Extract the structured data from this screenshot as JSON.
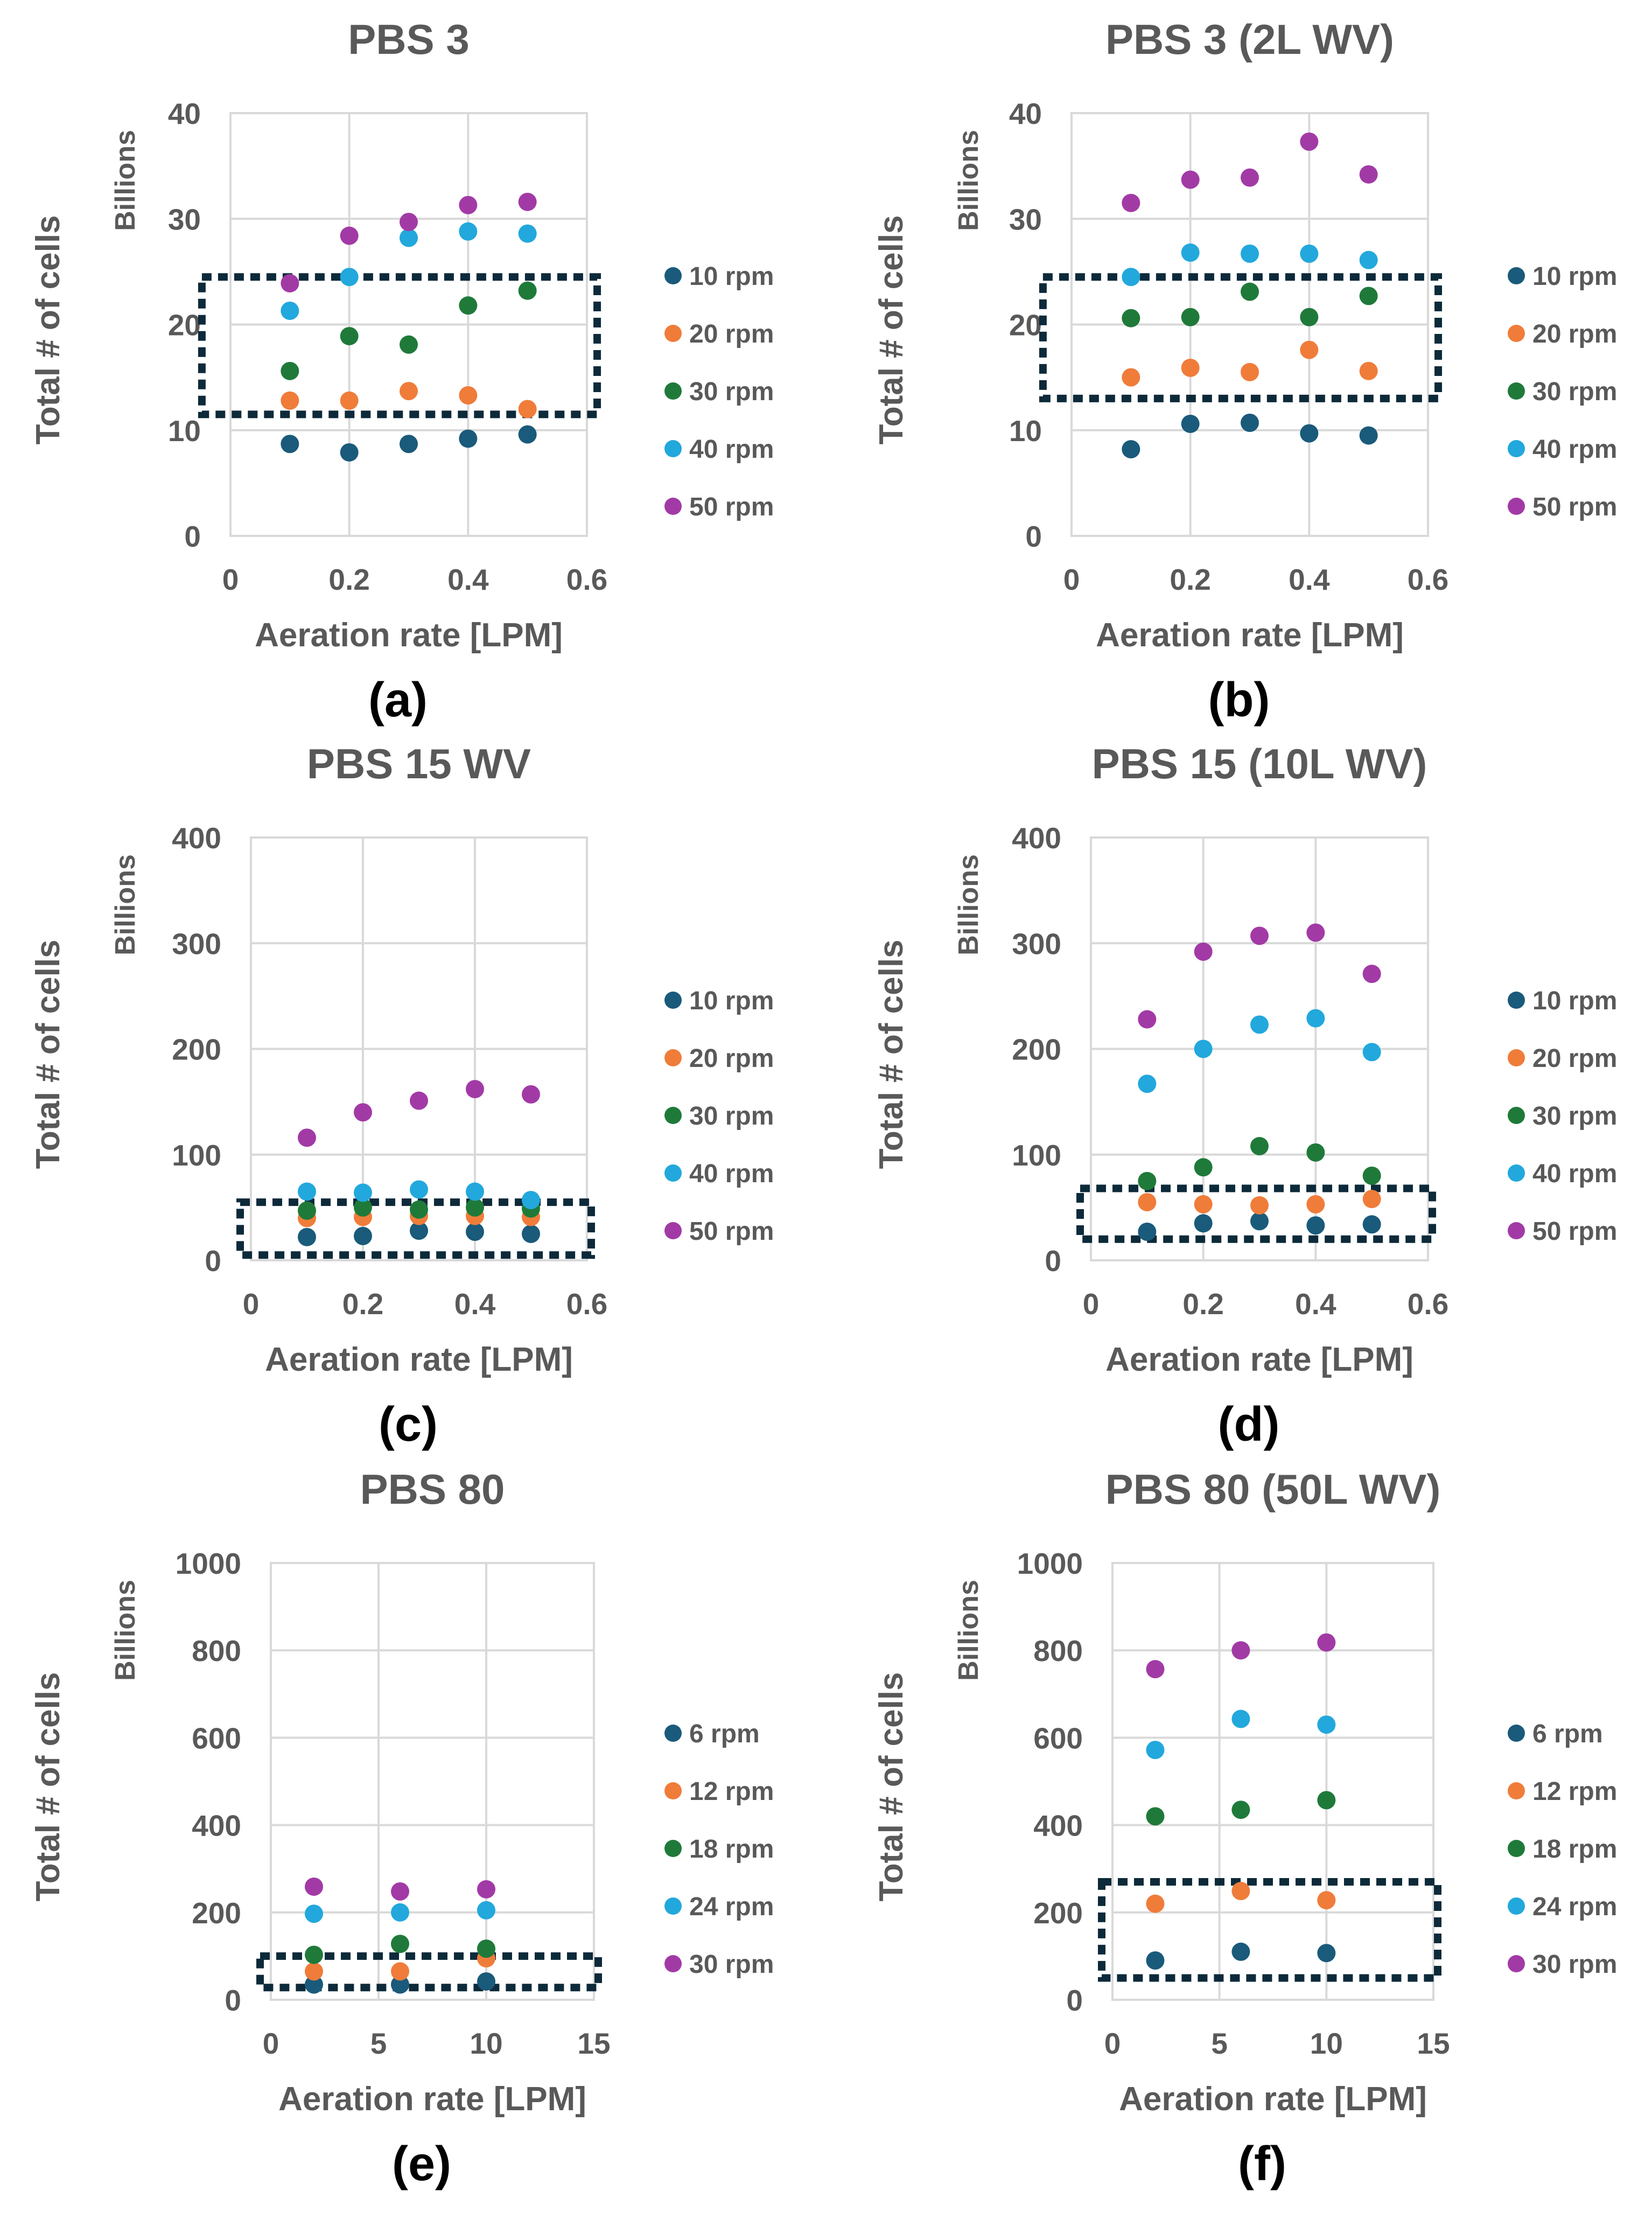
{
  "colors": {
    "rpm1": "#1a5a7a",
    "rpm2": "#f07c3a",
    "rpm3": "#1f7a3a",
    "rpm4": "#22a8dc",
    "rpm5": "#a23aa6",
    "highlight": "#0d2a3a",
    "text": "#595959",
    "grid": "#d9d9d9"
  },
  "chart_data": [
    {
      "panel": "(a)",
      "type": "scatter",
      "title": "PBS 3",
      "xlabel": "Aeration rate [LPM]",
      "ylabel": "Total # of cells",
      "units": "Billions",
      "xlim": [
        0,
        0.6
      ],
      "ylim": [
        0,
        40
      ],
      "xticks": [
        0,
        0.2,
        0.4,
        0.6
      ],
      "xtick_labels": [
        "0",
        "0.2",
        "0.4",
        "0.6"
      ],
      "yticks": [
        0,
        10,
        20,
        30,
        40
      ],
      "ytick_labels": [
        "0",
        "10",
        "20",
        "30",
        "40"
      ],
      "highlight": {
        "x": [
          -0.03,
          0.61
        ],
        "y": [
          11.5,
          24.5
        ]
      },
      "series": [
        {
          "name": "10 rpm",
          "x": [
            0.1,
            0.2,
            0.3,
            0.4,
            0.5
          ],
          "y": [
            8.7,
            7.9,
            8.7,
            9.2,
            9.6
          ]
        },
        {
          "name": "20 rpm",
          "x": [
            0.1,
            0.2,
            0.3,
            0.4,
            0.5
          ],
          "y": [
            12.8,
            12.8,
            13.7,
            13.3,
            12.0
          ]
        },
        {
          "name": "30 rpm",
          "x": [
            0.1,
            0.2,
            0.3,
            0.4,
            0.5
          ],
          "y": [
            15.6,
            18.9,
            18.1,
            21.8,
            23.2
          ]
        },
        {
          "name": "40 rpm",
          "x": [
            0.1,
            0.2,
            0.3,
            0.4,
            0.5
          ],
          "y": [
            21.3,
            24.5,
            28.2,
            28.8,
            28.6
          ]
        },
        {
          "name": "50 rpm",
          "x": [
            0.1,
            0.2,
            0.3,
            0.4,
            0.5
          ],
          "y": [
            23.9,
            28.4,
            29.7,
            31.3,
            31.6
          ]
        }
      ]
    },
    {
      "panel": "(b)",
      "type": "scatter",
      "title": "PBS 3 (2L WV)",
      "xlabel": "Aeration rate [LPM]",
      "ylabel": "Total # of cells",
      "units": "Billions",
      "xlim": [
        0,
        0.6
      ],
      "ylim": [
        0,
        40
      ],
      "xticks": [
        0,
        0.2,
        0.4,
        0.6
      ],
      "xtick_labels": [
        "0",
        "0.2",
        "0.4",
        "0.6"
      ],
      "yticks": [
        0,
        10,
        20,
        30,
        40
      ],
      "ytick_labels": [
        "0",
        "10",
        "20",
        "30",
        "40"
      ],
      "highlight": {
        "x": [
          -0.03,
          0.61
        ],
        "y": [
          13.0,
          24.5
        ]
      },
      "series": [
        {
          "name": "10 rpm",
          "x": [
            0.1,
            0.2,
            0.3,
            0.4,
            0.5
          ],
          "y": [
            8.2,
            10.6,
            10.7,
            9.7,
            9.5
          ]
        },
        {
          "name": "20 rpm",
          "x": [
            0.1,
            0.2,
            0.3,
            0.4,
            0.5
          ],
          "y": [
            15.0,
            15.9,
            15.5,
            17.6,
            15.6
          ]
        },
        {
          "name": "30 rpm",
          "x": [
            0.1,
            0.2,
            0.3,
            0.4,
            0.5
          ],
          "y": [
            20.6,
            20.7,
            23.1,
            20.7,
            22.7
          ]
        },
        {
          "name": "40 rpm",
          "x": [
            0.1,
            0.2,
            0.3,
            0.4,
            0.5
          ],
          "y": [
            24.5,
            26.8,
            26.7,
            26.7,
            26.1
          ]
        },
        {
          "name": "50 rpm",
          "x": [
            0.1,
            0.2,
            0.3,
            0.4,
            0.5
          ],
          "y": [
            31.5,
            33.7,
            33.9,
            37.3,
            34.2
          ]
        }
      ]
    },
    {
      "panel": "(c)",
      "type": "scatter",
      "title": "PBS 15 WV",
      "xlabel": "Aeration rate [LPM]",
      "ylabel": "Total # of cells",
      "units": "Billions",
      "xlim": [
        0,
        0.6
      ],
      "ylim": [
        0,
        400
      ],
      "xticks": [
        0,
        0.2,
        0.4,
        0.6
      ],
      "xtick_labels": [
        "0",
        "0.2",
        "0.4",
        "0.6"
      ],
      "yticks": [
        0,
        100,
        200,
        300,
        400
      ],
      "ytick_labels": [
        "0",
        "100",
        "200",
        "300",
        "400"
      ],
      "highlight": {
        "x": [
          0,
          0.6
        ],
        "y": [
          5,
          55
        ]
      },
      "series": [
        {
          "name": "10 rpm",
          "x": [
            0.1,
            0.2,
            0.3,
            0.4,
            0.5
          ],
          "y": [
            22,
            23,
            28,
            27,
            25
          ]
        },
        {
          "name": "20 rpm",
          "x": [
            0.1,
            0.2,
            0.3,
            0.4,
            0.5
          ],
          "y": [
            40,
            41,
            42,
            42,
            41
          ]
        },
        {
          "name": "30 rpm",
          "x": [
            0.1,
            0.2,
            0.3,
            0.4,
            0.5
          ],
          "y": [
            47,
            50,
            48,
            50,
            49
          ]
        },
        {
          "name": "40 rpm",
          "x": [
            0.1,
            0.2,
            0.3,
            0.4,
            0.5
          ],
          "y": [
            65,
            64,
            67,
            65,
            57
          ]
        },
        {
          "name": "50 rpm",
          "x": [
            0.1,
            0.2,
            0.3,
            0.4,
            0.5
          ],
          "y": [
            116,
            140,
            151,
            162,
            157
          ]
        }
      ]
    },
    {
      "panel": "(d)",
      "type": "scatter",
      "title": "PBS 15 (10L WV)",
      "xlabel": "Aeration rate [LPM]",
      "ylabel": "Total # of cells",
      "units": "Billions",
      "xlim": [
        0,
        0.6
      ],
      "ylim": [
        0,
        400
      ],
      "xticks": [
        0,
        0.2,
        0.4,
        0.6
      ],
      "xtick_labels": [
        "0",
        "0.2",
        "0.4",
        "0.6"
      ],
      "yticks": [
        0,
        100,
        200,
        300,
        400
      ],
      "ytick_labels": [
        "0",
        "100",
        "200",
        "300",
        "400"
      ],
      "highlight": {
        "x": [
          0,
          0.6
        ],
        "y": [
          20,
          68
        ]
      },
      "series": [
        {
          "name": "10 rpm",
          "x": [
            0.1,
            0.2,
            0.3,
            0.4,
            0.5
          ],
          "y": [
            27,
            35,
            37,
            33,
            34
          ]
        },
        {
          "name": "20 rpm",
          "x": [
            0.1,
            0.2,
            0.3,
            0.4,
            0.5
          ],
          "y": [
            55,
            53,
            52,
            53,
            58
          ]
        },
        {
          "name": "30 rpm",
          "x": [
            0.1,
            0.2,
            0.3,
            0.4,
            0.5
          ],
          "y": [
            75,
            88,
            108,
            102,
            80
          ]
        },
        {
          "name": "40 rpm",
          "x": [
            0.1,
            0.2,
            0.3,
            0.4,
            0.5
          ],
          "y": [
            167,
            200,
            223,
            229,
            197
          ]
        },
        {
          "name": "50 rpm",
          "x": [
            0.1,
            0.2,
            0.3,
            0.4,
            0.5
          ],
          "y": [
            228,
            292,
            307,
            310,
            271
          ]
        }
      ]
    },
    {
      "panel": "(e)",
      "type": "scatter",
      "title": "PBS 80",
      "xlabel": "Aeration rate [LPM]",
      "ylabel": "Total # of cells",
      "units": "Billions",
      "xlim": [
        0,
        15
      ],
      "ylim": [
        0,
        1000
      ],
      "xticks": [
        0,
        5,
        10,
        15
      ],
      "xtick_labels": [
        "0",
        "5",
        "10",
        "15"
      ],
      "yticks": [
        0,
        200,
        400,
        600,
        800,
        1000
      ],
      "ytick_labels": [
        "0",
        "200",
        "400",
        "600",
        "800",
        "1000"
      ],
      "highlight": {
        "x": [
          0,
          15
        ],
        "y": [
          28,
          100
        ]
      },
      "series": [
        {
          "name": "6 rpm",
          "x": [
            2,
            6,
            10
          ],
          "y": [
            35,
            35,
            42
          ]
        },
        {
          "name": "12 rpm",
          "x": [
            2,
            6,
            10
          ],
          "y": [
            65,
            65,
            95
          ]
        },
        {
          "name": "18 rpm",
          "x": [
            2,
            6,
            10
          ],
          "y": [
            103,
            128,
            117
          ]
        },
        {
          "name": "24 rpm",
          "x": [
            2,
            6,
            10
          ],
          "y": [
            197,
            200,
            205
          ]
        },
        {
          "name": "30 rpm",
          "x": [
            2,
            6,
            10
          ],
          "y": [
            259,
            248,
            253
          ]
        }
      ]
    },
    {
      "panel": "(f)",
      "type": "scatter",
      "title": "PBS 80 (50L WV)",
      "xlabel": "Aeration rate [LPM]",
      "ylabel": "Total # of cells",
      "units": "Billions",
      "xlim": [
        0,
        15
      ],
      "ylim": [
        0,
        1000
      ],
      "xticks": [
        0,
        5,
        10,
        15
      ],
      "xtick_labels": [
        "0",
        "5",
        "10",
        "15"
      ],
      "yticks": [
        0,
        200,
        400,
        600,
        800,
        1000
      ],
      "ytick_labels": [
        "0",
        "200",
        "400",
        "600",
        "800",
        "1000"
      ],
      "highlight": {
        "x": [
          0,
          15
        ],
        "y": [
          50,
          270
        ]
      },
      "series": [
        {
          "name": "6 rpm",
          "x": [
            2,
            6,
            10
          ],
          "y": [
            90,
            110,
            107
          ]
        },
        {
          "name": "12 rpm",
          "x": [
            2,
            6,
            10
          ],
          "y": [
            220,
            249,
            228
          ]
        },
        {
          "name": "18 rpm",
          "x": [
            2,
            6,
            10
          ],
          "y": [
            420,
            435,
            457
          ]
        },
        {
          "name": "24 rpm",
          "x": [
            2,
            6,
            10
          ],
          "y": [
            572,
            643,
            630
          ]
        },
        {
          "name": "30 rpm",
          "x": [
            2,
            6,
            10
          ],
          "y": [
            757,
            800,
            818
          ]
        }
      ]
    }
  ]
}
